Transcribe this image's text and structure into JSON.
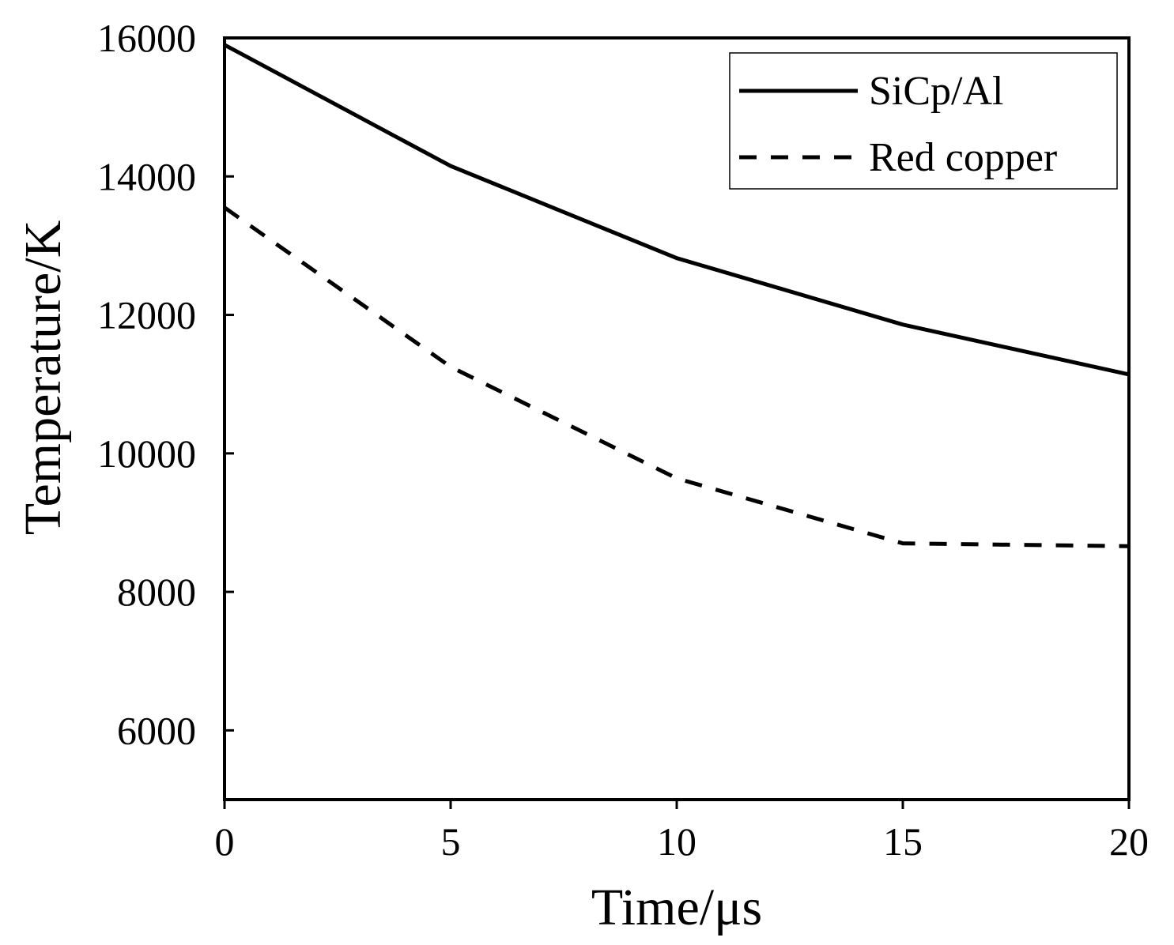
{
  "chart_data": {
    "type": "line",
    "title": "",
    "xlabel": "Time/μs",
    "ylabel": "Temperature/K",
    "xlim": [
      0,
      20
    ],
    "ylim": [
      5000,
      16000
    ],
    "xticks": [
      0,
      5,
      10,
      15,
      20
    ],
    "xtick_labels": [
      "0",
      "5",
      "10",
      "15",
      "20"
    ],
    "yticks": [
      6000,
      8000,
      10000,
      12000,
      14000,
      16000
    ],
    "ytick_labels": [
      "6000",
      "8000",
      "10000",
      "12000",
      "14000",
      "16000"
    ],
    "grid": false,
    "legend_position": "top-right",
    "series": [
      {
        "name": "SiCp/Al",
        "style": "solid",
        "color": "#000000",
        "x": [
          0,
          5,
          10,
          15,
          20
        ],
        "y": [
          15900,
          14150,
          12820,
          11860,
          11140
        ]
      },
      {
        "name": "Red copper",
        "style": "dashed",
        "color": "#000000",
        "x": [
          0,
          5,
          10,
          15,
          20
        ],
        "y": [
          13550,
          11250,
          9640,
          8700,
          8660
        ]
      }
    ]
  }
}
